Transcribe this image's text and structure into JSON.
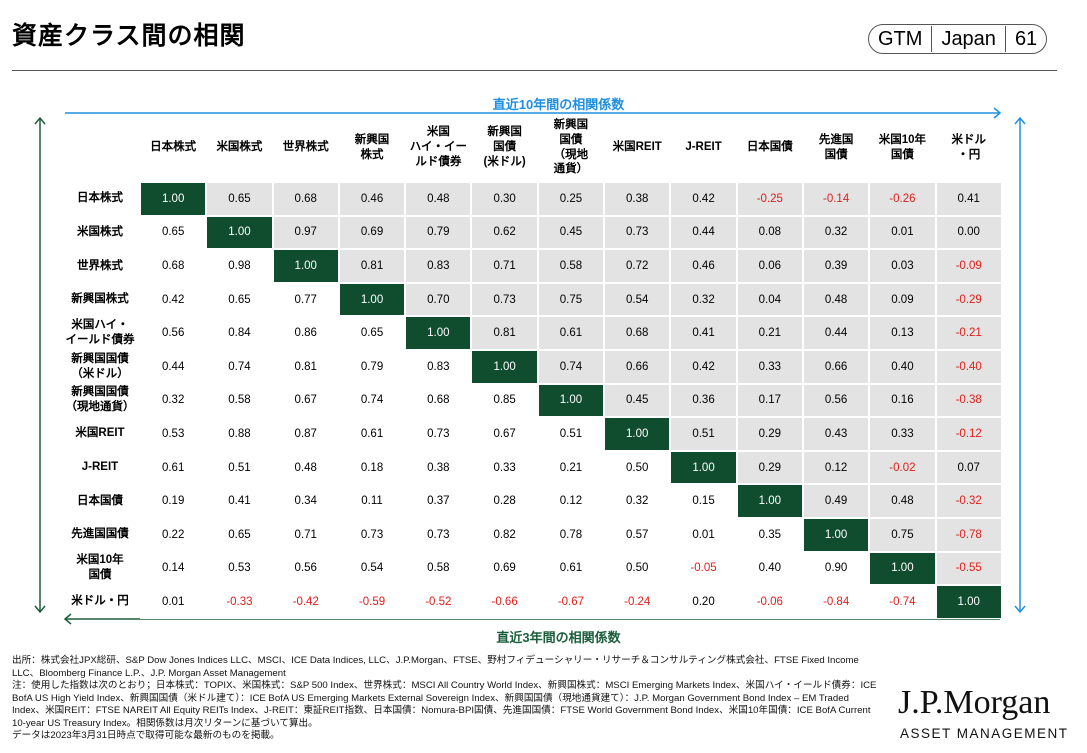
{
  "header": {
    "title": "資産クラス間の相関",
    "badge": [
      "GTM",
      "Japan",
      "61"
    ]
  },
  "chart_data": {
    "type": "heatmap",
    "title": "",
    "upper_label": "直近10年間の相関係数",
    "lower_label": "直近3年間の相関係数",
    "columns": [
      "日本株式",
      "米国株式",
      "世界株式",
      "新興国\n株式",
      "米国\nハイ・イー\nルド債券",
      "新興国\n国債\n(米ドル)",
      "新興国\n国債\n（現地\n通貨）",
      "米国REIT",
      "J-REIT",
      "日本国債",
      "先進国\n国債",
      "米国10年\n国債",
      "米ドル\n・円"
    ],
    "rows": [
      "日本株式",
      "米国株式",
      "世界株式",
      "新興国株式",
      "米国ハイ・\nイールド債券",
      "新興国国債\n（米ドル）",
      "新興国国債\n（現地通貨）",
      "米国REIT",
      "J-REIT",
      "日本国債",
      "先進国国債",
      "米国10年\n国債",
      "米ドル・円"
    ],
    "values": [
      [
        "1.00",
        "0.65",
        "0.68",
        "0.46",
        "0.48",
        "0.30",
        "0.25",
        "0.38",
        "0.42",
        "-0.25",
        "-0.14",
        "-0.26",
        "0.41"
      ],
      [
        "0.65",
        "1.00",
        "0.97",
        "0.69",
        "0.79",
        "0.62",
        "0.45",
        "0.73",
        "0.44",
        "0.08",
        "0.32",
        "0.01",
        "0.00"
      ],
      [
        "0.68",
        "0.98",
        "1.00",
        "0.81",
        "0.83",
        "0.71",
        "0.58",
        "0.72",
        "0.46",
        "0.06",
        "0.39",
        "0.03",
        "-0.09"
      ],
      [
        "0.42",
        "0.65",
        "0.77",
        "1.00",
        "0.70",
        "0.73",
        "0.75",
        "0.54",
        "0.32",
        "0.04",
        "0.48",
        "0.09",
        "-0.29"
      ],
      [
        "0.56",
        "0.84",
        "0.86",
        "0.65",
        "1.00",
        "0.81",
        "0.61",
        "0.68",
        "0.41",
        "0.21",
        "0.44",
        "0.13",
        "-0.21"
      ],
      [
        "0.44",
        "0.74",
        "0.81",
        "0.79",
        "0.83",
        "1.00",
        "0.74",
        "0.66",
        "0.42",
        "0.33",
        "0.66",
        "0.40",
        "-0.40"
      ],
      [
        "0.32",
        "0.58",
        "0.67",
        "0.74",
        "0.68",
        "0.85",
        "1.00",
        "0.45",
        "0.36",
        "0.17",
        "0.56",
        "0.16",
        "-0.38"
      ],
      [
        "0.53",
        "0.88",
        "0.87",
        "0.61",
        "0.73",
        "0.67",
        "0.51",
        "1.00",
        "0.51",
        "0.29",
        "0.43",
        "0.33",
        "-0.12"
      ],
      [
        "0.61",
        "0.51",
        "0.48",
        "0.18",
        "0.38",
        "0.33",
        "0.21",
        "0.50",
        "1.00",
        "0.29",
        "0.12",
        "-0.02",
        "0.07"
      ],
      [
        "0.19",
        "0.41",
        "0.34",
        "0.11",
        "0.37",
        "0.28",
        "0.12",
        "0.32",
        "0.15",
        "1.00",
        "0.49",
        "0.48",
        "-0.32"
      ],
      [
        "0.22",
        "0.65",
        "0.71",
        "0.73",
        "0.73",
        "0.82",
        "0.78",
        "0.57",
        "0.01",
        "0.35",
        "1.00",
        "0.75",
        "-0.78"
      ],
      [
        "0.14",
        "0.53",
        "0.56",
        "0.54",
        "0.58",
        "0.69",
        "0.61",
        "0.50",
        "-0.05",
        "0.40",
        "0.90",
        "1.00",
        "-0.55"
      ],
      [
        "0.01",
        "-0.33",
        "-0.42",
        "-0.59",
        "-0.52",
        "-0.66",
        "-0.67",
        "-0.24",
        "0.20",
        "-0.06",
        "-0.84",
        "-0.74",
        "1.00"
      ]
    ],
    "colors": {
      "diagonal": "#0f4d2e",
      "upper_bg": "#e3e3e3",
      "negative": "#e0201c",
      "upper_arrow": "#1f8fe0",
      "lower_arrow": "#1b5e3b"
    }
  },
  "footer": {
    "source": "出所：株式会社JPX総研、S&P Dow Jones Indices LLC、MSCI、ICE Data Indices, LLC、J.P.Morgan、FTSE、野村フィデューシャリー・リサーチ＆コンサルティング株式会社、FTSE Fixed Income LLC、Bloomberg Finance L.P.、J.P. Morgan Asset Management",
    "note": "注：使用した指数は次のとおり；日本株式：TOPIX、米国株式：S&P 500 Index、世界株式：MSCI All Country World Index、新興国株式：MSCI Emerging Markets Index、米国ハイ・イールド債券：ICE BofA US High Yield Index、新興国国債（米ドル建て）：ICE BofA US Emerging Markets External Sovereign Index、新興国国債（現地通貨建て）：J.P. Morgan Government Bond Index – EM Traded Index、米国REIT：FTSE NAREIT All Equity REITs Index、J-REIT：東証REIT指数、日本国債：Nomura-BPI国債、先進国国債：FTSE World Government Bond Index、米国10年国債：ICE BofA Current 10-year US Treasury Index。相関係数は月次リターンに基づいて算出。",
    "date": "データは2023年3月31日時点で取得可能な最新のものを掲載。"
  },
  "logo": {
    "name": "J.P.Morgan",
    "sub": "ASSET MANAGEMENT"
  }
}
